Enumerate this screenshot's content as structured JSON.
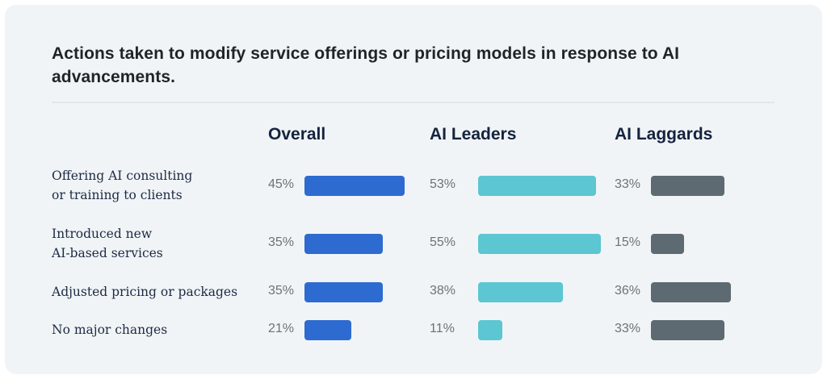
{
  "chart_data": {
    "type": "bar",
    "title": "Actions taken to modify service offerings or pricing models in response to AI advancements.",
    "categories": [
      [
        "Offering AI consulting",
        "or training to clients"
      ],
      [
        "Introduced new",
        "AI-based services"
      ],
      [
        "Adjusted pricing or packages"
      ],
      [
        "No major changes"
      ]
    ],
    "series": [
      {
        "name": "Overall",
        "color": "#2d6bd1",
        "values": [
          45,
          35,
          35,
          21
        ],
        "labels": [
          "45%",
          "35%",
          "35%",
          "21%"
        ]
      },
      {
        "name": "AI Leaders",
        "color": "#5cc6d2",
        "values": [
          53,
          55,
          38,
          11
        ],
        "labels": [
          "53%",
          "55%",
          "38%",
          "11%"
        ]
      },
      {
        "name": "AI Laggards",
        "color": "#5e6a71",
        "values": [
          33,
          15,
          36,
          33
        ],
        "labels": [
          "33%",
          "15%",
          "36%",
          "33%"
        ]
      }
    ],
    "unit": "%",
    "xlabel": "",
    "ylabel": "",
    "grid": false,
    "legend": "column headers at top"
  }
}
